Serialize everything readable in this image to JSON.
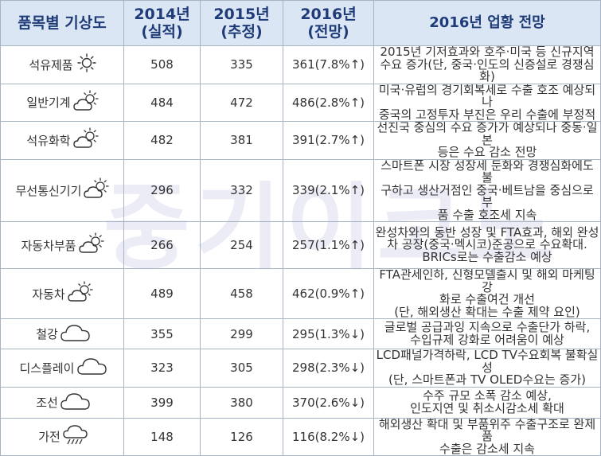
{
  "watermark": "중기이코노",
  "headers": {
    "category": "품목별 기상도",
    "y2014": "2014년\n(실적)",
    "y2015": "2015년\n(추정)",
    "y2016": "2016년\n(전망)",
    "outlook": "2016년 업황 전망"
  },
  "rows": [
    {
      "name": "석유제품",
      "weather": "sunny-icon",
      "v2014": "508",
      "v2015": "335",
      "v2016": "361(7.8%↑)",
      "outlook": "2015년 기저효과와 호주·미국 등 신규지역\n수요 증가(단, 중국·인도의 신증설로 경쟁심화)"
    },
    {
      "name": "일반기계",
      "weather": "partly-cloudy-icon",
      "v2014": "484",
      "v2015": "472",
      "v2016": "486(2.8%↑)",
      "outlook": "미국·유럽의 경기회복세로 수출 호조 예상되나\n중국의 고정투자 부진은 우리 수출에 부정적"
    },
    {
      "name": "석유화학",
      "weather": "partly-cloudy-icon",
      "v2014": "482",
      "v2015": "381",
      "v2016": "391(2.7%↑)",
      "outlook": "선진국 중심의 수요 증가가 예상되나 중동·일본\n등은 수요 감소 전망"
    },
    {
      "name": "무선통신기기",
      "weather": "partly-cloudy-icon",
      "v2014": "296",
      "v2015": "332",
      "v2016": "339(2.1%↑)",
      "outlook": "스마트폰 시장 성장세 둔화와 경쟁심화에도 불\n구하고 생산거점인 중국·베트남을 중심으로 부\n품 수출 호조세 지속"
    },
    {
      "name": "자동차부품",
      "weather": "partly-cloudy-icon",
      "v2014": "266",
      "v2015": "254",
      "v2016": "257(1.1%↑)",
      "outlook": "완성차와의 동반 성장 및  FTA효과, 해외 완성\n차 공장(중국·멕시코)준공으로 수요확대.\nBRICs로는 수출감소 예상"
    },
    {
      "name": "자동차",
      "weather": "partly-cloudy-icon",
      "v2014": "489",
      "v2015": "458",
      "v2016": "462(0.9%↑)",
      "outlook": "FTA관세인하, 신형모델출시 및 해외 마케팅 강\n화로 수출여건 개선\n(단, 해외생산 확대는 수출 제약 요인)"
    },
    {
      "name": "철강",
      "weather": "cloudy-icon",
      "v2014": "355",
      "v2015": "299",
      "v2016": "295(1.3%↓)",
      "outlook": "글로벌 공급과잉 지속으로 수출단가 하락,\n수입규제 강화로 어려움이 예상"
    },
    {
      "name": "디스플레이",
      "weather": "cloudy-icon",
      "v2014": "323",
      "v2015": "305",
      "v2016": "298(2.3%↓)",
      "outlook": "LCD패널가격하락, LCD TV수요회복 불확실성\n(단, 스마트폰과 TV OLED수요는 증가)"
    },
    {
      "name": "조선",
      "weather": "cloudy-icon",
      "v2014": "399",
      "v2015": "380",
      "v2016": "370(2.6%↓)",
      "outlook": "수주 규모 소폭 감소 예상,\n인도지연 및 취소시감소세 확대"
    },
    {
      "name": "가전",
      "weather": "rainy-icon",
      "v2014": "148",
      "v2015": "126",
      "v2016": "116(8.2%↓)",
      "outlook": "해외생산 확대 및 부품위주 수출구조로 완제품\n수출은 감소세 지속"
    }
  ]
}
